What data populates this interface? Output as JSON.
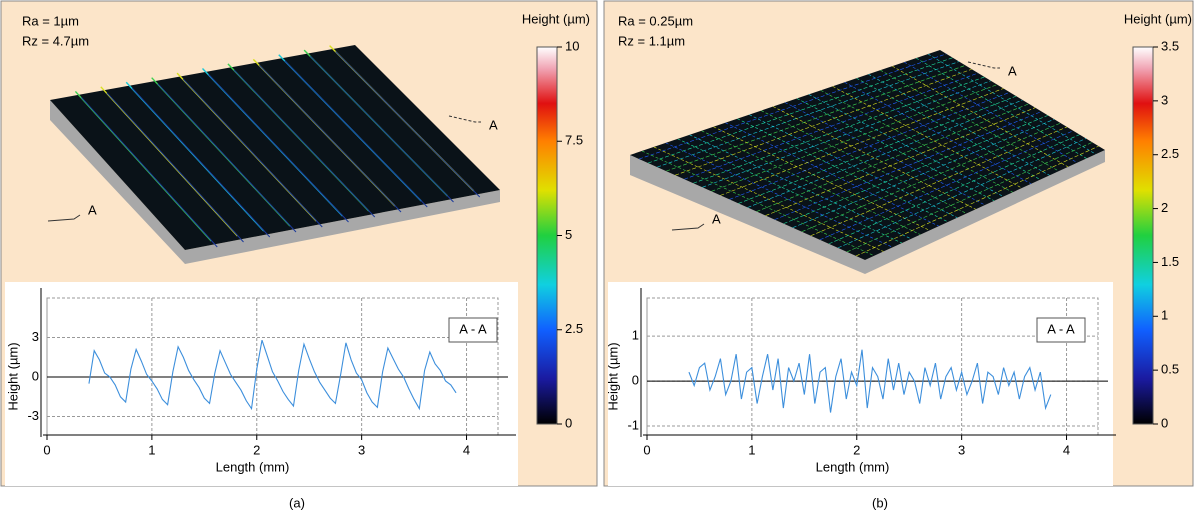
{
  "chart_data": [
    {
      "type": "line",
      "caption": "(a)",
      "annotations": [
        "Ra = 1µm",
        "Rz = 4.7µm"
      ],
      "colorbar": {
        "title": "Height (µm)",
        "lim": [
          0,
          10
        ],
        "ticks": [
          0,
          2.5,
          5,
          7.5,
          10
        ]
      },
      "section_labels": [
        "A",
        "A"
      ],
      "legend_label": "A - A",
      "xlabel": "Length (mm)",
      "ylabel": "Height (µm)",
      "x": [
        0.4,
        0.45,
        0.5,
        0.55,
        0.6,
        0.65,
        0.7,
        0.75,
        0.8,
        0.85,
        0.9,
        0.95,
        1.0,
        1.05,
        1.1,
        1.15,
        1.2,
        1.25,
        1.3,
        1.35,
        1.4,
        1.45,
        1.5,
        1.55,
        1.6,
        1.65,
        1.7,
        1.75,
        1.8,
        1.85,
        1.9,
        1.95,
        2.0,
        2.05,
        2.1,
        2.15,
        2.2,
        2.25,
        2.3,
        2.35,
        2.4,
        2.45,
        2.5,
        2.55,
        2.6,
        2.65,
        2.7,
        2.75,
        2.8,
        2.85,
        2.9,
        2.95,
        3.0,
        3.05,
        3.1,
        3.15,
        3.2,
        3.25,
        3.3,
        3.35,
        3.4,
        3.45,
        3.5,
        3.55,
        3.6,
        3.65,
        3.7,
        3.75,
        3.8,
        3.85,
        3.9
      ],
      "series": [
        {
          "color": "#3d8fdc",
          "values": [
            -0.5,
            2.0,
            1.3,
            0.3,
            0.0,
            -0.6,
            -1.5,
            -1.9,
            0.6,
            2.1,
            1.2,
            0.2,
            -0.3,
            -0.9,
            -1.7,
            -2.1,
            0.4,
            2.3,
            1.5,
            0.5,
            -0.2,
            -0.8,
            -1.6,
            -2.0,
            0.3,
            2.0,
            1.1,
            0.2,
            -0.4,
            -1.0,
            -1.8,
            -2.4,
            0.6,
            2.8,
            1.6,
            0.4,
            -0.3,
            -1.1,
            -1.7,
            -2.2,
            0.5,
            2.5,
            1.4,
            0.4,
            -0.4,
            -1.0,
            -1.6,
            -2.0,
            0.2,
            2.6,
            1.3,
            0.3,
            -0.2,
            -1.2,
            -1.9,
            -2.3,
            0.4,
            2.2,
            1.4,
            0.6,
            0.0,
            -0.9,
            -1.7,
            -2.4,
            0.5,
            1.9,
            1.0,
            0.5,
            -0.3,
            -0.6,
            -1.2
          ]
        }
      ],
      "xlim": [
        0,
        4.3
      ],
      "xticks": [
        0,
        1,
        2,
        3,
        4
      ],
      "ylim": [
        -4.4,
        6
      ],
      "yticks": [
        -3,
        0,
        3
      ],
      "grid": true
    },
    {
      "type": "line",
      "caption": "(b)",
      "annotations": [
        "Ra = 0.25µm",
        "Rz = 1.1µm"
      ],
      "colorbar": {
        "title": "Height (µm)",
        "lim": [
          0,
          3.5
        ],
        "ticks": [
          0,
          0.5,
          1,
          1.5,
          2,
          2.5,
          3,
          3.5
        ]
      },
      "section_labels": [
        "A",
        "A"
      ],
      "legend_label": "A - A",
      "xlabel": "Length (mm)",
      "ylabel": "Height (µm)",
      "x": [
        0.4,
        0.45,
        0.5,
        0.55,
        0.6,
        0.65,
        0.7,
        0.75,
        0.8,
        0.85,
        0.9,
        0.95,
        1.0,
        1.05,
        1.1,
        1.15,
        1.2,
        1.25,
        1.3,
        1.35,
        1.4,
        1.45,
        1.5,
        1.55,
        1.6,
        1.65,
        1.7,
        1.75,
        1.8,
        1.85,
        1.9,
        1.95,
        2.0,
        2.05,
        2.1,
        2.15,
        2.2,
        2.25,
        2.3,
        2.35,
        2.4,
        2.45,
        2.5,
        2.55,
        2.6,
        2.65,
        2.7,
        2.75,
        2.8,
        2.85,
        2.9,
        2.95,
        3.0,
        3.05,
        3.1,
        3.15,
        3.2,
        3.25,
        3.3,
        3.35,
        3.4,
        3.45,
        3.5,
        3.55,
        3.6,
        3.65,
        3.7,
        3.75,
        3.8,
        3.85
      ],
      "series": [
        {
          "color": "#3d8fdc",
          "values": [
            0.2,
            -0.1,
            0.3,
            0.4,
            -0.2,
            0.1,
            0.5,
            -0.3,
            0.0,
            0.6,
            -0.4,
            0.2,
            0.3,
            -0.5,
            0.1,
            0.6,
            -0.2,
            0.5,
            -0.6,
            0.3,
            0.0,
            0.4,
            -0.3,
            0.6,
            -0.5,
            0.2,
            0.3,
            -0.7,
            0.1,
            0.5,
            -0.4,
            0.2,
            -0.1,
            0.7,
            -0.6,
            0.3,
            0.1,
            -0.4,
            0.5,
            -0.2,
            0.4,
            -0.3,
            0.2,
            0.0,
            -0.5,
            0.3,
            -0.1,
            0.4,
            -0.4,
            0.1,
            0.3,
            -0.2,
            0.2,
            -0.3,
            0.0,
            0.4,
            -0.5,
            0.2,
            0.1,
            -0.3,
            0.3,
            -0.1,
            0.2,
            -0.4,
            0.1,
            0.3,
            -0.2,
            0.2,
            -0.6,
            -0.3
          ]
        }
      ],
      "xlim": [
        0,
        4.3
      ],
      "xticks": [
        0,
        1,
        2,
        3,
        4
      ],
      "ylim": [
        -1.2,
        1.85
      ],
      "yticks": [
        -1,
        0,
        1
      ],
      "grid": true
    }
  ]
}
